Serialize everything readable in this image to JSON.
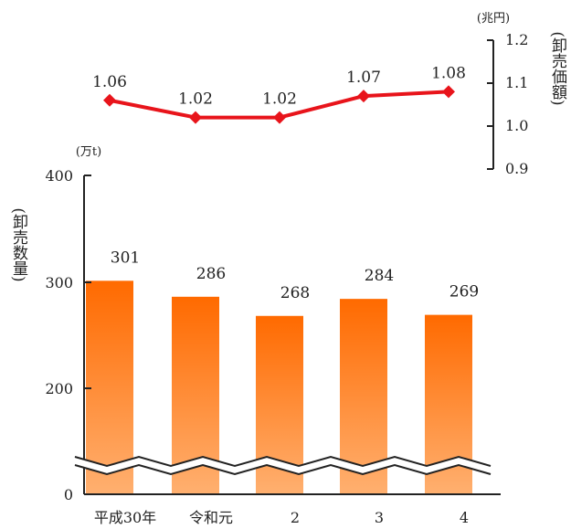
{
  "chart_data": [
    {
      "type": "line",
      "name": "price",
      "ylabel": "(卸売価額)",
      "unit": "(兆円)",
      "categories": [
        "平成30年",
        "令和元",
        "2",
        "3",
        "4"
      ],
      "values": [
        1.06,
        1.02,
        1.02,
        1.07,
        1.08
      ],
      "value_labels": [
        "1.06",
        "1.02",
        "1.02",
        "1.07",
        "1.08"
      ],
      "ylim": [
        0.9,
        1.2
      ],
      "yticks": [
        0.9,
        1.0,
        1.1,
        1.2
      ],
      "ytick_labels": [
        "0.9",
        "1.0",
        "1.1",
        "1.2"
      ],
      "axis_position": "right",
      "color": "#e8141b",
      "marker": "diamond"
    },
    {
      "type": "bar",
      "name": "volume",
      "ylabel": "(卸売数量)",
      "unit": "(万t)",
      "categories": [
        "平成30年",
        "令和元",
        "2",
        "3",
        "4"
      ],
      "values": [
        301,
        286,
        268,
        284,
        269
      ],
      "value_labels": [
        "301",
        "286",
        "268",
        "284",
        "269"
      ],
      "ylim": [
        0,
        400
      ],
      "yticks": [
        0,
        200,
        300,
        400
      ],
      "ytick_labels": [
        "0",
        "200",
        "300",
        "400"
      ],
      "axis_break": [
        0,
        200
      ],
      "axis_position": "left",
      "color_top": "#ff6a00",
      "color_bottom": "#ffb070"
    }
  ]
}
